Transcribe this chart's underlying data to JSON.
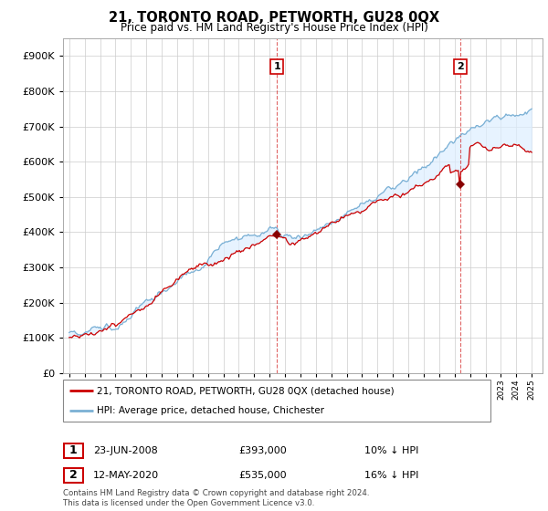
{
  "title": "21, TORONTO ROAD, PETWORTH, GU28 0QX",
  "subtitle": "Price paid vs. HM Land Registry's House Price Index (HPI)",
  "legend_line1": "21, TORONTO ROAD, PETWORTH, GU28 0QX (detached house)",
  "legend_line2": "HPI: Average price, detached house, Chichester",
  "sale1_date": "23-JUN-2008",
  "sale1_price": "£393,000",
  "sale1_hpi": "10% ↓ HPI",
  "sale1_year": 2008.47,
  "sale1_value": 393000,
  "sale2_date": "12-MAY-2020",
  "sale2_price": "£535,000",
  "sale2_hpi": "16% ↓ HPI",
  "sale2_year": 2020.36,
  "sale2_value": 535000,
  "red_color": "#cc0000",
  "blue_color": "#7ab0d4",
  "fill_color": "#ddeeff",
  "footnote": "Contains HM Land Registry data © Crown copyright and database right 2024.\nThis data is licensed under the Open Government Licence v3.0.",
  "ylim": [
    0,
    950000
  ],
  "yticks": [
    0,
    100000,
    200000,
    300000,
    400000,
    500000,
    600000,
    700000,
    800000,
    900000
  ],
  "xstart": 1995,
  "xend": 2025
}
